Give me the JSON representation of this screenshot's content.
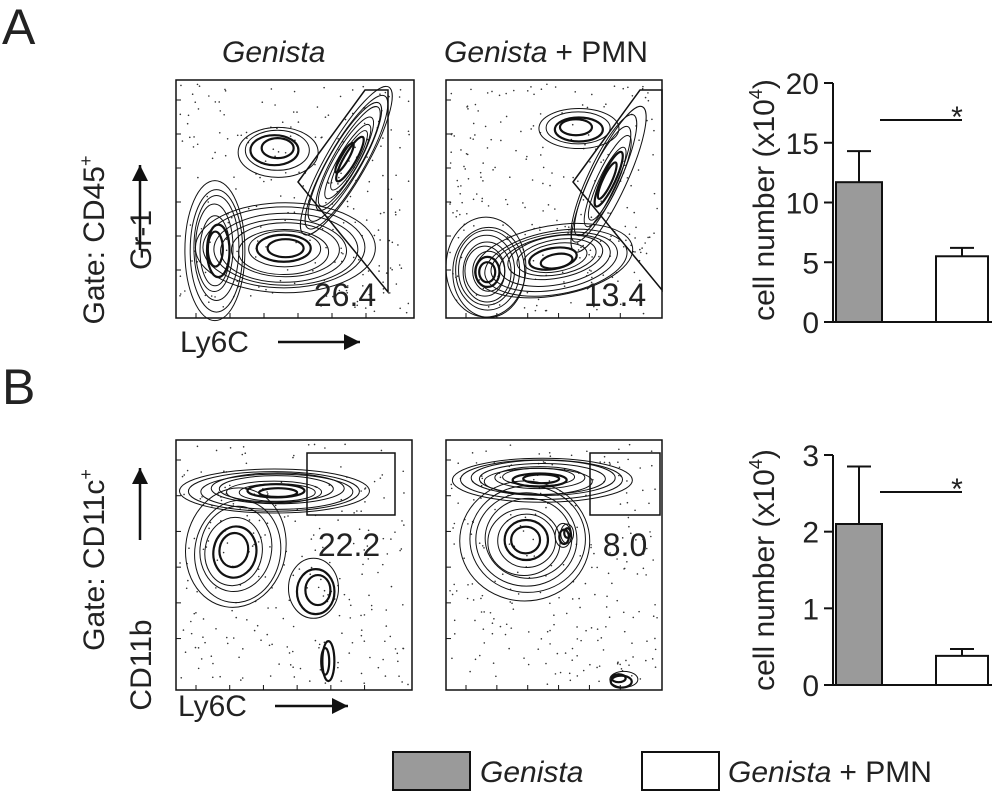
{
  "panels": [
    {
      "label": "A",
      "gate": {
        "text": "Gate: CD45",
        "sup": "+"
      },
      "y_marker": "Gr-1",
      "x_marker": "Ly6C",
      "gate_values": [
        "26.4",
        "13.4"
      ]
    },
    {
      "label": "B",
      "gate": {
        "text": "Gate: CD11c",
        "sup": "+"
      },
      "y_marker": "CD11b",
      "x_marker": "Ly6C",
      "gate_values": [
        "22.2",
        "8.0"
      ]
    }
  ],
  "columns": [
    {
      "italic": "Genista"
    },
    {
      "italic": "Genista",
      "plain": "+ PMN"
    }
  ],
  "legend": [
    {
      "italic": "Genista",
      "color": "#9a9a9a"
    },
    {
      "italic": "Genista",
      "plain": "+ PMN",
      "color": "#ffffff"
    }
  ],
  "chart_data": [
    {
      "type": "bar",
      "y_label": {
        "text": "cell number (x10",
        "sup": "4",
        "end": ")"
      },
      "values": [
        11.7,
        5.5
      ],
      "errors": [
        2.6,
        0.7
      ],
      "colors": [
        "#9a9a9a",
        "#ffffff"
      ],
      "ylim": [
        0,
        20
      ],
      "yticks": [
        0,
        5,
        10,
        15,
        20
      ],
      "significance": "*"
    },
    {
      "type": "bar",
      "y_label": {
        "text": "cell number (x10",
        "sup": "4",
        "end": ")"
      },
      "values": [
        2.1,
        0.38
      ],
      "errors": [
        0.75,
        0.09
      ],
      "colors": [
        "#9a9a9a",
        "#ffffff"
      ],
      "ylim": [
        0,
        3
      ],
      "yticks": [
        0,
        1,
        2,
        3
      ],
      "significance": "*"
    }
  ]
}
